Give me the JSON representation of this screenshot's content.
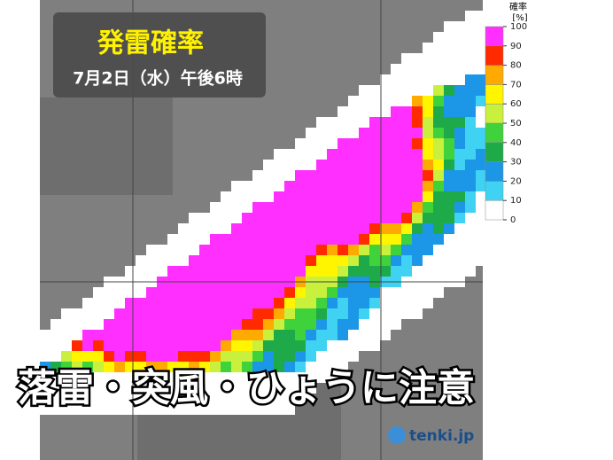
{
  "title": "発雷確率",
  "subtitle": "7月2日（水）午後6時",
  "headline": "落雷・突風・ひょうに注意",
  "logo": "tenki.jp",
  "legend": {
    "title": "確率",
    "unit": "[%]",
    "ticks": [
      0,
      10,
      20,
      30,
      40,
      50,
      60,
      70,
      80,
      90,
      100
    ],
    "colors": [
      "#ffffff",
      "#3fd2f2",
      "#1c96e6",
      "#1faa4a",
      "#3fd23a",
      "#c8f03c",
      "#fff500",
      "#ffaa00",
      "#ff2a00",
      "#ff30ff"
    ]
  }
}
